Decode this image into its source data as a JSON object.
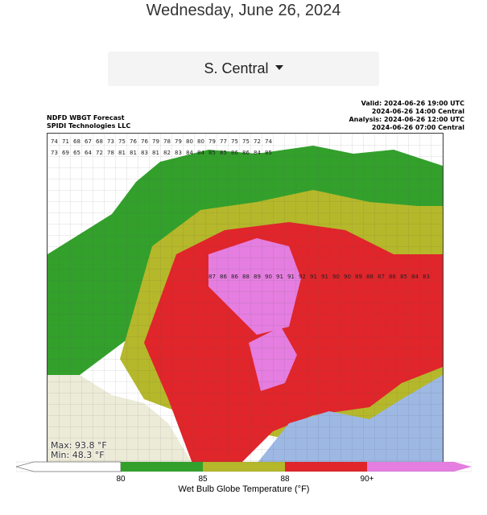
{
  "header": {
    "date": "Wednesday, June 26, 2024"
  },
  "region_select": {
    "selected": "S. Central"
  },
  "map": {
    "title_lines": [
      "NDFD WBGT Forecast",
      "SPIDI Technologies LLC"
    ],
    "time_lines": [
      "Valid: 2024-06-26 19:00 UTC",
      "2024-06-26 14:00 Central",
      "Analysis: 2024-06-26 12:00 UTC",
      "2024-06-26 07:00 Central"
    ],
    "max_label": "Max: 93.8 °F",
    "min_label": "Min: 48.3 °F",
    "colors": {
      "below_80": "#ffffff",
      "range_80_85": "#33a02c",
      "range_85_88": "#b5b82a",
      "range_88_90": "#e0252b",
      "above_90": "#e57ee0",
      "gulf_water": "#9db8e3",
      "mexico_land": "#ecebd8"
    },
    "sample_values": [
      "74",
      "71",
      "68",
      "67",
      "68",
      "73",
      "75",
      "76",
      "76",
      "79",
      "78",
      "79",
      "80",
      "80",
      "79",
      "77",
      "75",
      "75",
      "72",
      "74",
      "73",
      "69",
      "65",
      "64",
      "72",
      "78",
      "81",
      "81",
      "83",
      "81",
      "82",
      "83",
      "84",
      "84",
      "85",
      "85",
      "86",
      "86",
      "84",
      "85",
      "87",
      "86",
      "86",
      "88",
      "89",
      "90",
      "91",
      "91",
      "92",
      "91",
      "91",
      "90",
      "90",
      "89",
      "88",
      "87",
      "86",
      "85",
      "84",
      "83"
    ]
  },
  "colorbar": {
    "ticks": [
      "80",
      "85",
      "88",
      "90+"
    ],
    "label": "Wet Bulb Globe Temperature (°F)"
  }
}
